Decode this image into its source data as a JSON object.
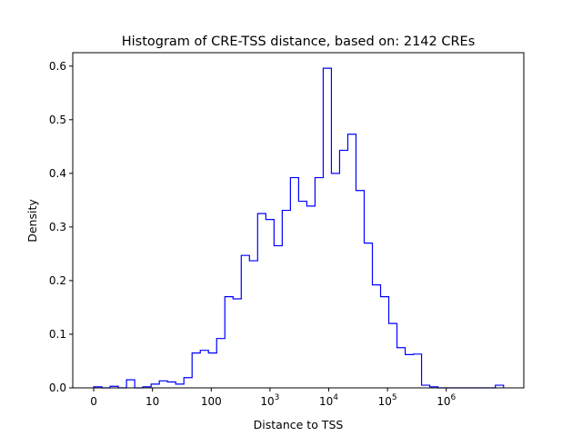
{
  "chart_data": {
    "type": "histogram-step",
    "title": "Histogram of CRE-TSS distance, based on: 2142 CREs",
    "xlabel": "Distance to TSS",
    "ylabel": "Density",
    "x_scale": "log10(distance), with 0 at the origin",
    "xlim": [
      -0.357,
      7.32
    ],
    "ylim": [
      0,
      0.625
    ],
    "x_ticks": [
      {
        "pos": 0,
        "label": "0",
        "sup": ""
      },
      {
        "pos": 1,
        "label": "10",
        "sup": ""
      },
      {
        "pos": 2,
        "label": "100",
        "sup": ""
      },
      {
        "pos": 3,
        "label": "10",
        "sup": "3"
      },
      {
        "pos": 4,
        "label": "10",
        "sup": "4"
      },
      {
        "pos": 5,
        "label": "10",
        "sup": "5"
      },
      {
        "pos": 6,
        "label": "10",
        "sup": "6"
      }
    ],
    "y_ticks": [
      "0.0",
      "0.1",
      "0.2",
      "0.3",
      "0.4",
      "0.5",
      "0.6"
    ],
    "bin_start": 0,
    "bin_width": 0.1395,
    "values": [
      0.002,
      0,
      0.003,
      0,
      0.015,
      0,
      0.002,
      0.007,
      0.013,
      0.011,
      0.007,
      0.019,
      0.065,
      0.07,
      0.065,
      0.092,
      0.17,
      0.166,
      0.247,
      0.237,
      0.325,
      0.314,
      0.265,
      0.331,
      0.392,
      0.348,
      0.339,
      0.392,
      0.596,
      0.4,
      0.443,
      0.473,
      0.368,
      0.27,
      0.192,
      0.17,
      0.12,
      0.075,
      0.062,
      0.063,
      0.005,
      0.002,
      0,
      0,
      0,
      0,
      0,
      0,
      0,
      0.005
    ],
    "color": "#0000ff",
    "grid": false
  }
}
